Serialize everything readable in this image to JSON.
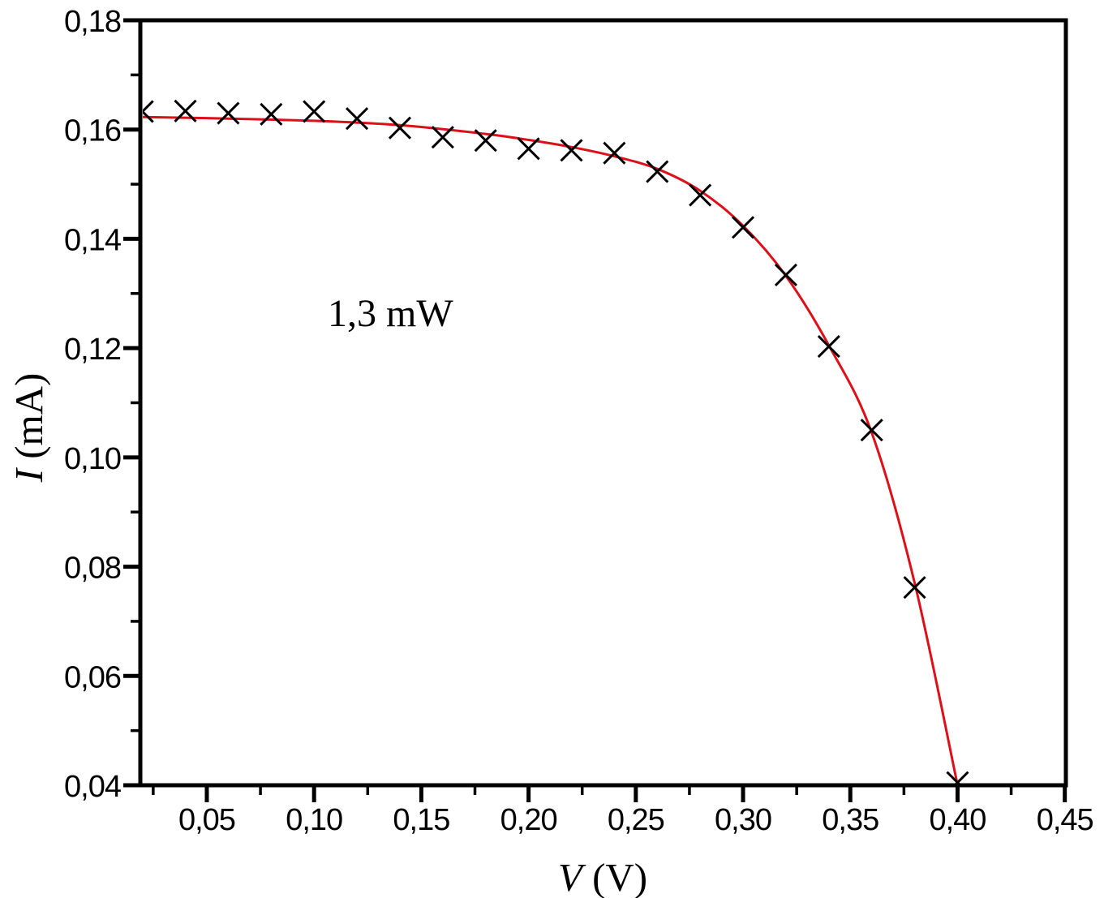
{
  "figure": {
    "background": "#ffffff",
    "annotation": {
      "text": "1,3 mW",
      "x_value": 0.105,
      "y_value": 0.1255
    },
    "x_axis_title": {
      "variable": "V",
      "unit": " (V)"
    },
    "y_axis_title": {
      "variable": "I",
      "unit": " (mA)"
    }
  },
  "chart_data": {
    "type": "scatter",
    "title": "",
    "xlabel": "V (V)",
    "ylabel": "I (mA)",
    "annotation": "1,3 mW",
    "decimal_separator": ",",
    "grid": false,
    "legend": "none",
    "x_axis": {
      "range": [
        0.019,
        0.4505
      ],
      "major_ticks": [
        0.05,
        0.1,
        0.15,
        0.2,
        0.25,
        0.3,
        0.35,
        0.4,
        0.45
      ],
      "major_tick_labels": [
        "0,05",
        "0,10",
        "0,15",
        "0,20",
        "0,25",
        "0,30",
        "0,35",
        "0,40",
        "0,45"
      ],
      "minor_ticks": [
        0.025,
        0.075,
        0.125,
        0.175,
        0.225,
        0.275,
        0.325,
        0.375,
        0.425
      ]
    },
    "y_axis": {
      "range": [
        0.04,
        0.18
      ],
      "major_ticks": [
        0.04,
        0.06,
        0.08,
        0.1,
        0.12,
        0.14,
        0.16,
        0.18
      ],
      "major_tick_labels": [
        "0,04",
        "0,06",
        "0,08",
        "0,10",
        "0,12",
        "0,14",
        "0,16",
        "0,18"
      ],
      "minor_ticks": [
        0.05,
        0.07,
        0.09,
        0.11,
        0.13,
        0.15,
        0.17
      ]
    },
    "series": [
      {
        "name": "measured-points",
        "style": "x-marker",
        "color": "#000000",
        "marker_half_size": 13,
        "points": [
          [
            0.02,
            0.1633
          ],
          [
            0.04,
            0.1634
          ],
          [
            0.06,
            0.163
          ],
          [
            0.08,
            0.1628
          ],
          [
            0.1,
            0.1633
          ],
          [
            0.12,
            0.162
          ],
          [
            0.14,
            0.1603
          ],
          [
            0.16,
            0.1586
          ],
          [
            0.18,
            0.158
          ],
          [
            0.2,
            0.1565
          ],
          [
            0.22,
            0.1562
          ],
          [
            0.24,
            0.1557
          ],
          [
            0.26,
            0.1523
          ],
          [
            0.28,
            0.148
          ],
          [
            0.3,
            0.1421
          ],
          [
            0.32,
            0.1334
          ],
          [
            0.34,
            0.1203
          ],
          [
            0.36,
            0.105
          ],
          [
            0.38,
            0.0762
          ],
          [
            0.4,
            0.0405
          ]
        ]
      },
      {
        "name": "fit-curve",
        "style": "line",
        "color": "#dd0f18",
        "line_width": 3,
        "points": [
          [
            0.019,
            0.1623
          ],
          [
            0.05,
            0.1621
          ],
          [
            0.1,
            0.1616
          ],
          [
            0.14,
            0.1608
          ],
          [
            0.18,
            0.1592
          ],
          [
            0.2,
            0.1581
          ],
          [
            0.22,
            0.1568
          ],
          [
            0.24,
            0.1551
          ],
          [
            0.26,
            0.1528
          ],
          [
            0.28,
            0.1488
          ],
          [
            0.3,
            0.1424
          ],
          [
            0.32,
            0.1332
          ],
          [
            0.34,
            0.1205
          ],
          [
            0.36,
            0.1045
          ],
          [
            0.38,
            0.077
          ],
          [
            0.4,
            0.04
          ]
        ]
      }
    ],
    "frame_color": "#000000"
  }
}
